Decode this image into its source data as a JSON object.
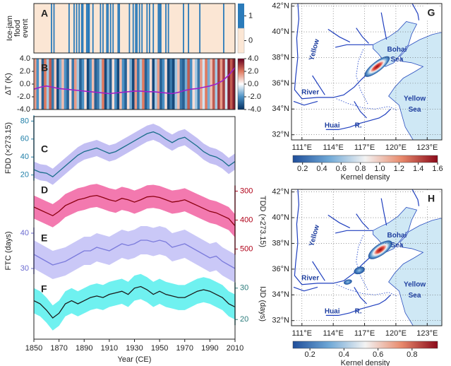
{
  "chart_data": [
    {
      "type": "event-stripes",
      "panel": "A",
      "ylabel": [
        "Ice-jam",
        "flood",
        "event"
      ],
      "xlim": [
        1850,
        2010
      ],
      "x": [
        1864,
        1866,
        1878,
        1882,
        1884,
        1886,
        1888,
        1889,
        1892,
        1893,
        1894,
        1897,
        1903,
        1905,
        1908,
        1909,
        1911,
        1913,
        1917,
        1918,
        1926,
        1929,
        1931,
        1932,
        1934,
        1936,
        1940,
        1942,
        1945,
        1949,
        1950,
        1951,
        1955,
        1957,
        1969,
        1973,
        1982,
        2001
      ],
      "colorbar": {
        "ticks": [
          0,
          1
        ],
        "colors": [
          "#fbe6d4",
          "#2b7bba"
        ]
      }
    },
    {
      "type": "stripes-line",
      "panel": "B",
      "ylabel": "ΔT (K)",
      "xlim": [
        1850,
        2010
      ],
      "ylim": [
        -4,
        4
      ],
      "yticks": [
        {
          "value": -4,
          "label": "-4.0"
        },
        {
          "value": -2,
          "label": "-2.0"
        },
        {
          "value": 0,
          "label": "0.0"
        },
        {
          "value": 2,
          "label": "2.0"
        },
        {
          "value": 4,
          "label": "4.0"
        }
      ],
      "cmap": [
        "#053061",
        "#4a90c4",
        "#ffffff",
        "#e07a60",
        "#67001f"
      ],
      "stripe_x": [
        1850,
        1852,
        1854,
        1856,
        1858,
        1860,
        1862,
        1864,
        1866,
        1868,
        1870,
        1872,
        1874,
        1876,
        1878,
        1880,
        1882,
        1884,
        1886,
        1888,
        1890,
        1892,
        1894,
        1896,
        1898,
        1900,
        1902,
        1904,
        1906,
        1908,
        1910,
        1912,
        1914,
        1916,
        1918,
        1920,
        1922,
        1924,
        1926,
        1928,
        1930,
        1932,
        1934,
        1936,
        1938,
        1940,
        1942,
        1944,
        1946,
        1948,
        1950,
        1952,
        1954,
        1956,
        1958,
        1960,
        1962,
        1964,
        1966,
        1968,
        1970,
        1972,
        1974,
        1976,
        1978,
        1980,
        1982,
        1984,
        1986,
        1988,
        1990,
        1992,
        1994,
        1996,
        1998,
        2000,
        2002,
        2004,
        2006,
        2008,
        2010
      ],
      "stripe_values": [
        1.5,
        -2,
        0.5,
        -3,
        2.0,
        -1,
        2.5,
        -2.5,
        0.8,
        -3.5,
        -1.5,
        1,
        -2,
        -3,
        0.5,
        -2.5,
        1.5,
        -1,
        -3,
        -2,
        0.5,
        -3.5,
        -2,
        1,
        -3,
        -2.5,
        -1,
        2,
        -3.5,
        -1.5,
        -3,
        0.5,
        -2,
        -3.5,
        1,
        -2,
        -3,
        0.5,
        -1.5,
        -3.5,
        1.5,
        -2.5,
        -1,
        2,
        -3,
        -2,
        0.5,
        -3.5,
        -1,
        1.5,
        -3,
        -2,
        0.5,
        -3.5,
        -2.5,
        -3.5,
        -1,
        1,
        -2.5,
        -3,
        -1.5,
        2.5,
        -2,
        0.5,
        -1,
        -2.5,
        1.5,
        -0.5,
        2,
        -1.5,
        1,
        2.5,
        -1,
        3,
        1.5,
        3,
        -0.5,
        3.5,
        2.5,
        3.5,
        3
      ],
      "line_color": "#a020c8",
      "line_x": [
        1850,
        1855,
        1860,
        1865,
        1870,
        1875,
        1880,
        1885,
        1890,
        1895,
        1900,
        1905,
        1910,
        1915,
        1920,
        1925,
        1930,
        1935,
        1940,
        1945,
        1950,
        1955,
        1960,
        1965,
        1970,
        1975,
        1980,
        1985,
        1990,
        1995,
        2000,
        2005,
        2010
      ],
      "line_values": [
        -0.8,
        -0.5,
        -0.3,
        -0.5,
        -0.7,
        -0.8,
        -0.9,
        -1.0,
        -1.1,
        -1.2,
        -1.3,
        -1.4,
        -1.5,
        -1.4,
        -1.3,
        -1.2,
        -1.1,
        -1.1,
        -1.2,
        -1.2,
        -1.3,
        -1.4,
        -1.5,
        -1.3,
        -1.0,
        -0.8,
        -0.7,
        -0.5,
        -0.3,
        0.0,
        0.5,
        1.4,
        2.6
      ]
    },
    {
      "type": "band-lines",
      "xlim": [
        1850,
        2010
      ],
      "xticks": [
        1850,
        1870,
        1890,
        1910,
        1930,
        1950,
        1970,
        1990,
        2010
      ],
      "xlabel": "Year (CE)",
      "x": [
        1850,
        1855,
        1860,
        1865,
        1870,
        1875,
        1880,
        1885,
        1890,
        1895,
        1900,
        1905,
        1910,
        1915,
        1920,
        1925,
        1930,
        1935,
        1940,
        1945,
        1950,
        1955,
        1960,
        1965,
        1970,
        1975,
        1980,
        1985,
        1990,
        1995,
        2000,
        2005,
        2010
      ],
      "series": [
        {
          "panel": "C",
          "axis_label": "FDD (×273.15)",
          "side": "left",
          "ylim": [
            15,
            85
          ],
          "yticks": [
            20,
            40,
            60,
            80
          ],
          "color": "#1a6e8a",
          "band_color": "#bdb8f2",
          "axis_color": "#1f7fa8",
          "values": [
            26,
            23,
            22,
            18,
            24,
            30,
            36,
            42,
            46,
            48,
            50,
            47,
            44,
            46,
            50,
            54,
            58,
            62,
            66,
            68,
            65,
            60,
            56,
            60,
            62,
            57,
            52,
            46,
            42,
            40,
            36,
            30,
            35
          ],
          "lower": [
            17,
            14,
            13,
            9,
            15,
            21,
            27,
            33,
            37,
            39,
            41,
            38,
            35,
            37,
            41,
            45,
            49,
            53,
            57,
            59,
            56,
            51,
            47,
            51,
            53,
            48,
            43,
            37,
            33,
            31,
            27,
            21,
            26
          ],
          "upper": [
            35,
            32,
            31,
            27,
            33,
            39,
            45,
            51,
            55,
            57,
            59,
            56,
            53,
            55,
            59,
            63,
            67,
            71,
            75,
            77,
            74,
            69,
            65,
            69,
            71,
            66,
            61,
            55,
            51,
            49,
            45,
            39,
            44
          ]
        },
        {
          "panel": "D",
          "axis_label": "TDD (×273.15)",
          "side": "right",
          "ylim": [
            560,
            250
          ],
          "yticks": [
            300,
            400,
            500
          ],
          "color": "#8b0010",
          "band_color": "#f26aa6",
          "axis_color": "#b00018",
          "values": [
            355,
            365,
            375,
            385,
            370,
            350,
            340,
            330,
            325,
            318,
            315,
            322,
            330,
            335,
            325,
            330,
            338,
            330,
            320,
            318,
            322,
            330,
            338,
            335,
            330,
            340,
            350,
            360,
            370,
            375,
            385,
            395,
            420
          ],
          "lower": [
            315,
            325,
            335,
            345,
            330,
            310,
            300,
            290,
            285,
            278,
            275,
            282,
            290,
            295,
            285,
            290,
            298,
            290,
            280,
            278,
            282,
            290,
            298,
            295,
            290,
            300,
            310,
            320,
            330,
            335,
            345,
            355,
            380
          ],
          "upper": [
            395,
            405,
            415,
            425,
            410,
            390,
            380,
            370,
            365,
            358,
            355,
            362,
            370,
            375,
            365,
            370,
            378,
            370,
            360,
            358,
            362,
            370,
            378,
            375,
            370,
            380,
            390,
            400,
            410,
            415,
            425,
            435,
            460
          ]
        },
        {
          "panel": "E",
          "axis_label": "FTC (days)",
          "side": "left",
          "ylim": [
            26,
            44
          ],
          "yticks": [
            30,
            40
          ],
          "color": "#7c7cdc",
          "band_color": "#c4c2f6",
          "axis_color": "#6a6ad0",
          "values": [
            34,
            33,
            32,
            31,
            31.5,
            32,
            33,
            34,
            35,
            35,
            36,
            35.5,
            35,
            36,
            37,
            36.5,
            37,
            38,
            38,
            37.5,
            38,
            37.5,
            36,
            36.5,
            37,
            36,
            35,
            34,
            33,
            33.5,
            32,
            31,
            30
          ],
          "lower": [
            30,
            29,
            28,
            27,
            27.5,
            28,
            29,
            30,
            31,
            31,
            32,
            31.5,
            31,
            32,
            33,
            32.5,
            33,
            34,
            34,
            33.5,
            34,
            33.5,
            32,
            32.5,
            33,
            32,
            31,
            30,
            29,
            29.5,
            28,
            27,
            26
          ],
          "upper": [
            38,
            37,
            36,
            35,
            35.5,
            36,
            37,
            38,
            39,
            39,
            40,
            39.5,
            39,
            40,
            41,
            40.5,
            41,
            42,
            42,
            41.5,
            42,
            41.5,
            40,
            40.5,
            41,
            40,
            39,
            38,
            37,
            37.5,
            36,
            35,
            34
          ]
        },
        {
          "panel": "F",
          "axis_label": "IJD (days)",
          "side": "right",
          "ylim": [
            16,
            34
          ],
          "yticks": [
            20,
            30
          ],
          "color": "#1a1a1a",
          "band_color": "#5ff0ee",
          "axis_color": "#2a7a7a",
          "values": [
            26,
            25,
            23,
            20.5,
            22,
            25,
            26,
            25,
            26,
            27,
            27.5,
            27,
            28,
            28.5,
            29,
            28,
            30,
            30.5,
            29.5,
            28,
            29,
            28,
            27.5,
            27,
            27,
            28,
            29,
            29.5,
            29,
            28,
            27,
            25,
            24
          ],
          "lower": [
            22,
            21,
            19,
            16.5,
            18,
            21,
            22,
            21,
            22,
            23,
            23.5,
            23,
            24,
            24.5,
            25,
            24,
            26,
            26.5,
            25.5,
            24,
            25,
            24,
            23.5,
            23,
            23,
            24,
            25,
            25.5,
            25,
            24,
            23,
            21,
            20
          ],
          "upper": [
            30,
            29,
            27,
            24.5,
            26,
            29,
            30,
            29,
            30,
            31,
            31.5,
            31,
            32,
            32.5,
            33,
            32,
            34,
            34.5,
            33.5,
            32,
            33,
            32,
            31.5,
            31,
            31,
            32,
            33,
            33.5,
            33,
            32,
            31,
            29,
            28
          ]
        }
      ]
    },
    {
      "type": "map",
      "panel": "G",
      "xlim": [
        110,
        124.4
      ],
      "ylim": [
        31.6,
        42.2
      ],
      "xticks": [
        {
          "value": 111,
          "label": "111°E"
        },
        {
          "value": 114,
          "label": "114°E"
        },
        {
          "value": 117,
          "label": "117°E"
        },
        {
          "value": 120,
          "label": "120°E"
        },
        {
          "value": 123,
          "label": "123°E"
        }
      ],
      "yticks": [
        {
          "value": 32,
          "label": "32°N"
        },
        {
          "value": 34,
          "label": "34°N"
        },
        {
          "value": 36,
          "label": "36°N"
        },
        {
          "value": 38,
          "label": "38°N"
        },
        {
          "value": 40,
          "label": "40°N"
        },
        {
          "value": 42,
          "label": "42°N"
        }
      ],
      "labels": [
        "Yellow",
        "Bohai",
        "Sea",
        "River",
        "Huai",
        "R.",
        "Yellow",
        "Sea"
      ],
      "colorbar": {
        "label": "Kernel density",
        "lim": [
          0.1,
          1.6
        ],
        "ticks": [
          0.2,
          0.4,
          0.6,
          0.8,
          {
            "value": 1,
            "label": "1.0"
          },
          1.2,
          1.4,
          1.6
        ],
        "cmap": [
          "#1f4e9a",
          "#6fa8d6",
          "#f3f3f3",
          "#e88a6c",
          "#8b0a1a"
        ]
      }
    },
    {
      "type": "map",
      "panel": "H",
      "xlim": [
        110,
        124.4
      ],
      "ylim": [
        31.6,
        42.2
      ],
      "xticks": [
        {
          "value": 111,
          "label": "111°E"
        },
        {
          "value": 114,
          "label": "114°E"
        },
        {
          "value": 117,
          "label": "117°E"
        },
        {
          "value": 120,
          "label": "120°E"
        },
        {
          "value": 123,
          "label": "123°E"
        }
      ],
      "yticks": [
        {
          "value": 32,
          "label": "32°N"
        },
        {
          "value": 34,
          "label": "34°N"
        },
        {
          "value": 36,
          "label": "36°N"
        },
        {
          "value": 38,
          "label": "38°N"
        },
        {
          "value": 40,
          "label": "40°N"
        },
        {
          "value": 42,
          "label": "42°N"
        }
      ],
      "labels": [
        "Yellow",
        "Bohai",
        "Sea",
        "River",
        "Huai",
        "R.",
        "Yellow",
        "Sea"
      ],
      "colorbar": {
        "label": "Kernel density",
        "lim": [
          0.1,
          0.95
        ],
        "ticks": [
          0.2,
          0.4,
          0.6,
          0.8
        ],
        "cmap": [
          "#1f4e9a",
          "#6fa8d6",
          "#f3f3f3",
          "#e88a6c",
          "#8b0a1a"
        ]
      }
    }
  ]
}
